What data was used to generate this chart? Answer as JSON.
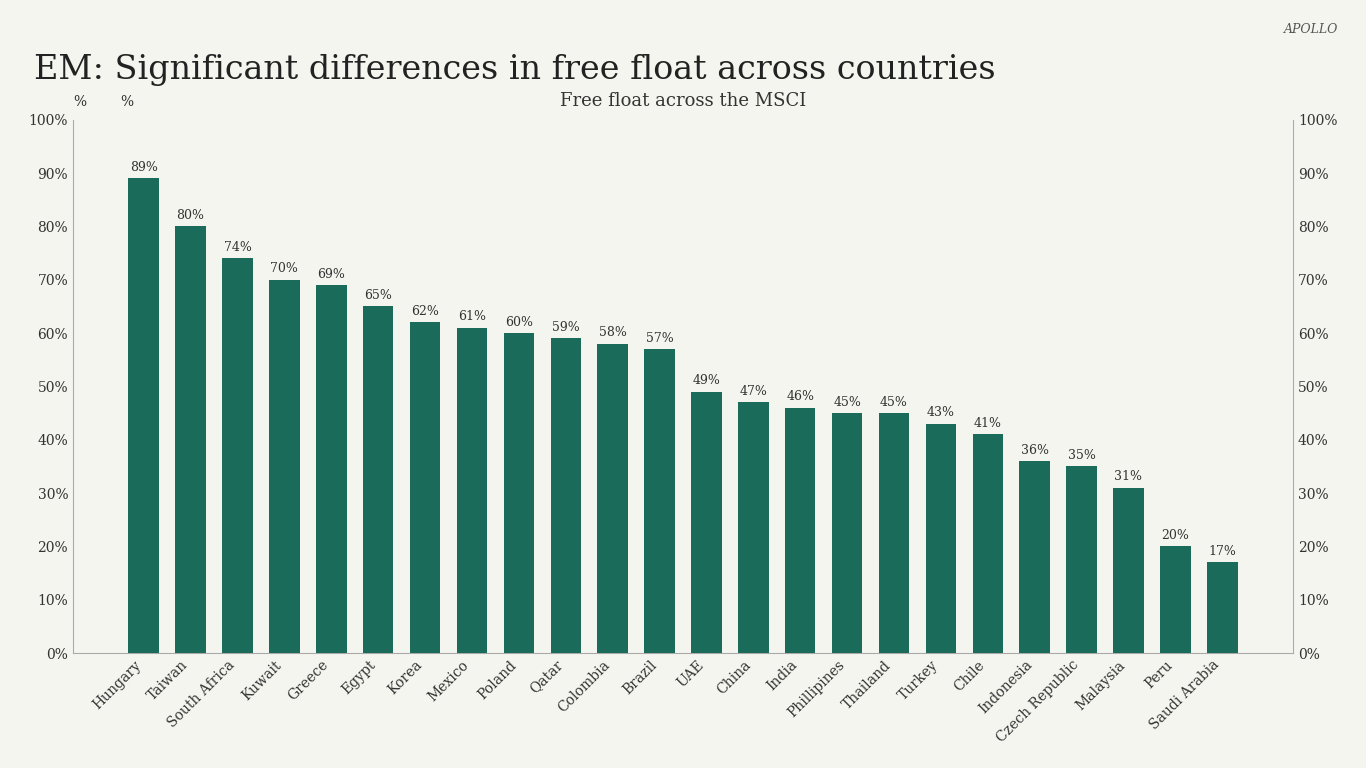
{
  "title": "EM: Significant differences in free float across countries",
  "subtitle": "Free float across the MSCI",
  "watermark": "APOLLO",
  "categories": [
    "Hungary",
    "Taiwan",
    "South Africa",
    "Kuwait",
    "Greece",
    "Egypt",
    "Korea",
    "Mexico",
    "Poland",
    "Qatar",
    "Colombia",
    "Brazil",
    "UAE",
    "China",
    "India",
    "Phillipines",
    "Thailand",
    "Turkey",
    "Chile",
    "Indonesia",
    "Czech Republic",
    "Malaysia",
    "Peru",
    "Saudi Arabia"
  ],
  "values": [
    89,
    80,
    74,
    70,
    69,
    65,
    62,
    61,
    60,
    59,
    58,
    57,
    49,
    47,
    46,
    45,
    45,
    43,
    41,
    36,
    35,
    31,
    20,
    17
  ],
  "bar_color": "#1a6b5a",
  "background_color": "#f5f5f0",
  "title_fontsize": 24,
  "subtitle_fontsize": 13,
  "label_fontsize": 9,
  "tick_fontsize": 10,
  "ylabel_left": "%",
  "ylabel_right": "%",
  "ylim": [
    0,
    100
  ],
  "yticks": [
    0,
    10,
    20,
    30,
    40,
    50,
    60,
    70,
    80,
    90,
    100
  ],
  "ytick_labels": [
    "0%",
    "10%",
    "20%",
    "30%",
    "40%",
    "50%",
    "60%",
    "70%",
    "80%",
    "90%",
    "100%"
  ]
}
